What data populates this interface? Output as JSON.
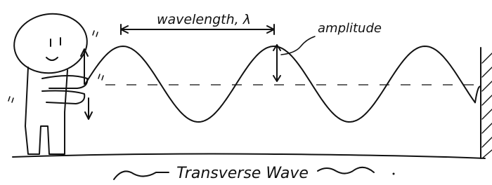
{
  "labels": {
    "wavelength": "wavelength, λ",
    "amplitude": "amplitude",
    "caption": "Transverse Wave"
  }
}
